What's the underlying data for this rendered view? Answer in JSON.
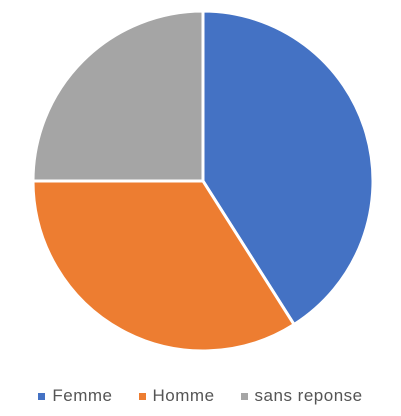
{
  "chart_data": {
    "type": "pie",
    "categories": [
      "Femme",
      "Homme",
      "sans reponse"
    ],
    "values": [
      41,
      34,
      25
    ],
    "colors": [
      "#4472C4",
      "#ED7D31",
      "#A5A5A5"
    ],
    "start_angle": "12 o'clock",
    "direction": "clockwise",
    "slice_border_color": "#ffffff",
    "legend_position": "bottom"
  }
}
